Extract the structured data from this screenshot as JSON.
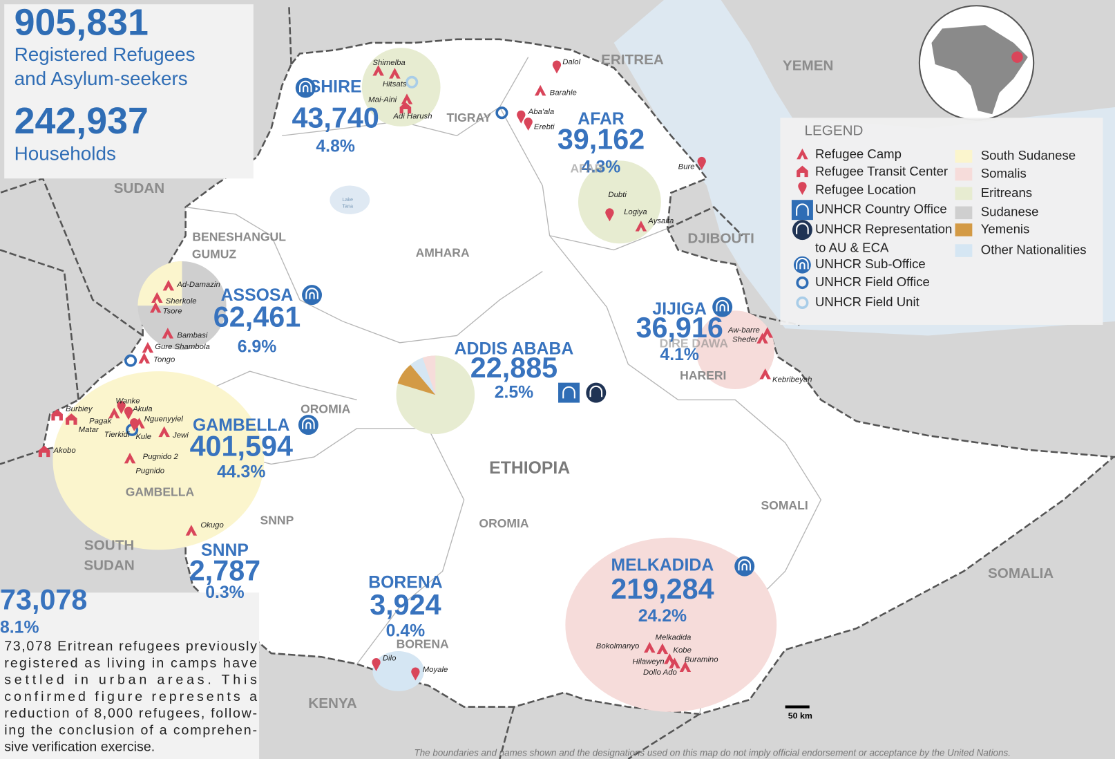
{
  "summary": {
    "refugees": "905,831",
    "refugees_label": [
      "Registered Refugees",
      "and Asylum-seekers"
    ],
    "households": "242,937",
    "households_label": "Households"
  },
  "offices": [
    {
      "name": "SHIRE",
      "total": "43,740",
      "share": "4.8%"
    },
    {
      "name": "AFAR",
      "total": "39,162",
      "share": "4.3%"
    },
    {
      "name": "ASSOSA",
      "total": "62,461",
      "share": "6.9%"
    },
    {
      "name": "ADDIS ABABA",
      "total": "22,885",
      "share": "2.5%"
    },
    {
      "name": "JIJIGA",
      "total": "36,916",
      "share": "4.1%"
    },
    {
      "name": "GAMBELLA",
      "total": "401,594",
      "share": "44.3%"
    },
    {
      "name": "SNNP",
      "total": "2,787",
      "share": "0.3%"
    },
    {
      "name": "BORENA",
      "total": "3,924",
      "share": "0.4%"
    },
    {
      "name": "MELKADIDA",
      "total": "219,284",
      "share": "24.2%"
    }
  ],
  "urban": {
    "total": "73,078",
    "share": "8.1%",
    "note": [
      "73,078 Eritrean refugees previously",
      "registered as living in camps have",
      "settled in urban areas. This",
      "confirmed figure represents a",
      "reduction of 8,000 refugees, follow-",
      "ing the conclusion of a comprehen-",
      "sive verification exercise."
    ]
  },
  "countries": [
    "SUDAN",
    "ERITREA",
    "YEMEN",
    "DJIBOUTI",
    "SOUTH",
    "SUDAN",
    "KENYA",
    "SOMALIA",
    "ETHIOPIA"
  ],
  "regions": [
    "TIGRAY",
    "AFAR",
    "AMHARA",
    "BENESHANGUL",
    "GUMUZ",
    "OROMIA",
    "OROMIA",
    "SNNP",
    "GAMBELLA",
    "SOMALI",
    "HARERI",
    "DIRE DAWA",
    "BORENA"
  ],
  "lake": [
    "Lake",
    "Tana"
  ],
  "locations": [
    "Shimelba",
    "Hitsats",
    "Mai-Aini",
    "Adi Harush",
    "Dalol",
    "Barahle",
    "Aba'ala",
    "Erebti",
    "Bure",
    "Dubti",
    "Logiya",
    "Aysaita",
    "Ad-Damazin",
    "Sherkole",
    "Tsore",
    "Bambasi",
    "Gure Shambola",
    "Tongo",
    "Wanke",
    "Akula",
    "Burbiey",
    "Pagak",
    "Matar",
    "Nguenyyiel",
    "Tierkidi",
    "Kule",
    "Jewi",
    "Akobo",
    "Pugnido 2",
    "Pugnido",
    "Okugo",
    "Aw-barre",
    "Sheder",
    "Kebribeyah",
    "Dilo",
    "Moyale",
    "Bokolmanyo",
    "Melkadida",
    "Kobe",
    "Buramino",
    "Hilaweyn",
    "Dollo Ado"
  ],
  "legend": {
    "title": "LEGEND",
    "symbols": [
      "Refugee Camp",
      "Refugee Transit Center",
      "Refugee Location",
      "UNHCR Country Office",
      "UNHCR Representation",
      "to AU & ECA",
      "UNHCR Sub-Office",
      "UNHCR Field Office",
      "UNHCR Field Unit"
    ],
    "nationalities": [
      {
        "name": "South Sudanese",
        "color": "#fbf5cd"
      },
      {
        "name": "Somalis",
        "color": "#f6dcda"
      },
      {
        "name": "Eritreans",
        "color": "#e7ecd1"
      },
      {
        "name": "Sudanese",
        "color": "#cfcfcf"
      },
      {
        "name": "Yemenis",
        "color": "#d39a45"
      },
      {
        "name": "Other Nationalities",
        "color": "#d5e6f3"
      }
    ]
  },
  "scale": "50 km",
  "disclaimer": "The boundaries and names shown and the designations used on this map do not imply official endorsement or acceptance by the United Nations."
}
